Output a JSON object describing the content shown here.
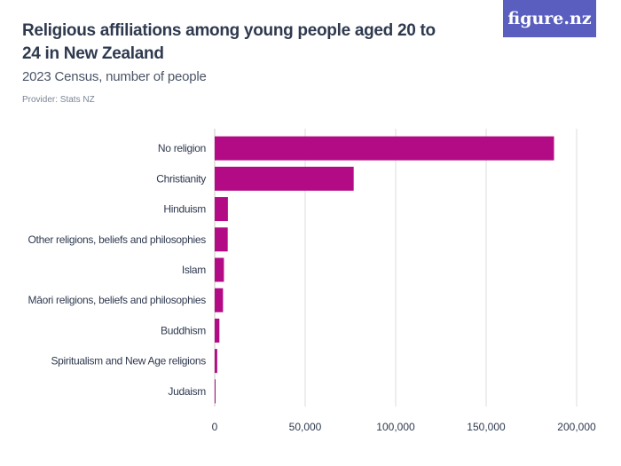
{
  "header": {
    "title": "Religious affiliations among young people aged 20 to 24 in New Zealand",
    "subtitle": "2023 Census, number of people",
    "provider": "Provider: Stats NZ",
    "logo": "figure.nz"
  },
  "colors": {
    "bar": "#b30b85",
    "logo_bg": "#5a5fbf",
    "grid": "#dddddd"
  },
  "chart_data": {
    "type": "bar",
    "orientation": "horizontal",
    "title": "Religious affiliations among young people aged 20 to 24 in New Zealand",
    "subtitle": "2023 Census, number of people",
    "categories": [
      "No religion",
      "Christianity",
      "Hinduism",
      "Other religions, beliefs and philosophies",
      "Islam",
      "Māori religions, beliefs and philosophies",
      "Buddhism",
      "Spiritualism and New Age religions",
      "Judaism"
    ],
    "values": [
      187500,
      76800,
      7300,
      7200,
      5100,
      4600,
      2600,
      1400,
      300
    ],
    "xlim": [
      0,
      200000
    ],
    "xticks": [
      0,
      50000,
      100000,
      150000,
      200000
    ],
    "xtick_labels": [
      "0",
      "50,000",
      "100,000",
      "150,000",
      "200,000"
    ],
    "grid": true
  }
}
